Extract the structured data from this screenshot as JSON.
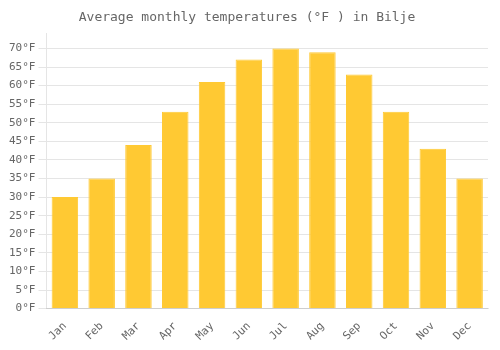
{
  "chart_data": {
    "type": "bar",
    "title": "Average monthly temperatures (°F ) in Bilje",
    "categories": [
      "Jan",
      "Feb",
      "Mar",
      "Apr",
      "May",
      "Jun",
      "Jul",
      "Aug",
      "Sep",
      "Oct",
      "Nov",
      "Dec"
    ],
    "values": [
      30,
      35,
      44,
      53,
      61,
      67,
      70,
      69,
      63,
      53,
      43,
      35
    ],
    "color": "#FFC933",
    "ylim": [
      0,
      74
    ],
    "yticks": [
      {
        "value": 0,
        "label": "0°F"
      },
      {
        "value": 5,
        "label": "5°F"
      },
      {
        "value": 10,
        "label": "10°F"
      },
      {
        "value": 15,
        "label": "15°F"
      },
      {
        "value": 20,
        "label": "20°F"
      },
      {
        "value": 25,
        "label": "25°F"
      },
      {
        "value": 30,
        "label": "30°F"
      },
      {
        "value": 35,
        "label": "35°F"
      },
      {
        "value": 40,
        "label": "40°F"
      },
      {
        "value": 45,
        "label": "45°F"
      },
      {
        "value": 50,
        "label": "50°F"
      },
      {
        "value": 55,
        "label": "55°F"
      },
      {
        "value": 60,
        "label": "60°F"
      },
      {
        "value": 65,
        "label": "65°F"
      },
      {
        "value": 70,
        "label": "70°F"
      }
    ],
    "grid": "y"
  }
}
